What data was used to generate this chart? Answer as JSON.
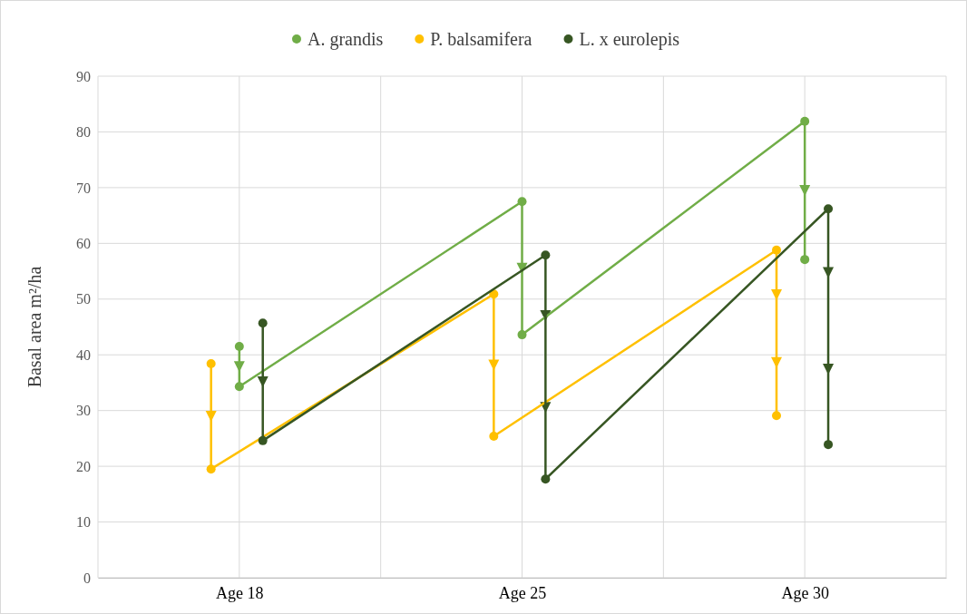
{
  "chart_data": {
    "type": "line",
    "ylabel": "Basal area m²/ha",
    "categories": [
      "Age 18",
      "Age 25",
      "Age 30"
    ],
    "ylim": [
      0,
      90
    ],
    "yticks": [
      0,
      10,
      20,
      30,
      40,
      50,
      60,
      70,
      80,
      90
    ],
    "grid": true,
    "legend": "top",
    "marker": "circle",
    "line_style": "solid",
    "series": [
      {
        "name": "A. grandis",
        "color": "#70ad47",
        "x": [
          "Age 18",
          "Age 18",
          "Age 25",
          "Age 25",
          "Age 30",
          "Age 30"
        ],
        "values": [
          41.5,
          34.3,
          67.5,
          43.6,
          81.9,
          57.1
        ]
      },
      {
        "name": "P. balsamifera",
        "color": "#ffc000",
        "x": [
          "Age 18",
          "Age 18",
          "Age 25",
          "Age 25",
          "Age 30",
          "Age 30"
        ],
        "values": [
          38.4,
          19.5,
          50.9,
          25.4,
          58.8,
          29.1
        ]
      },
      {
        "name": "L. x eurolepis",
        "color": "#375623",
        "x": [
          "Age 18",
          "Age 18",
          "Age 25",
          "Age 25",
          "Age 30",
          "Age 30"
        ],
        "values": [
          45.7,
          24.6,
          57.9,
          17.7,
          66.2,
          23.9
        ]
      }
    ]
  }
}
